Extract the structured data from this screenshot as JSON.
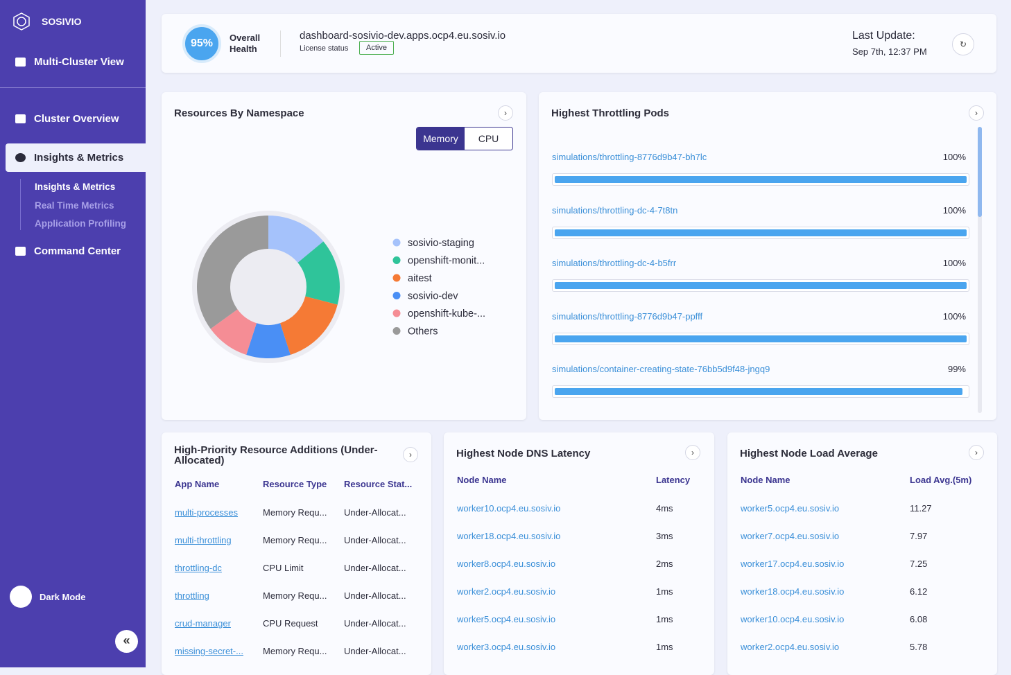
{
  "sidebar": {
    "brand": "SOSIVIO",
    "multi_cluster": "Multi-Cluster View",
    "cluster_overview": "Cluster Overview",
    "insights": "Insights & Metrics",
    "subitems": [
      "Insights & Metrics",
      "Real Time Metrics",
      "Application Profiling"
    ],
    "command_center": "Command Center",
    "dark_mode": "Dark Mode"
  },
  "header": {
    "health": {
      "value": 95,
      "label": "95%"
    },
    "health_title": "Overall Health",
    "cluster": "dashboard-sosivio-dev.apps.ocp4.eu.sosiv.io",
    "license_label": "License status",
    "license": "Active",
    "last_update_label": "Last Update:",
    "last_update": "Sep 7th, 12:37 PM"
  },
  "chart_data": {
    "type": "donut",
    "title": "Resources By Namespace",
    "toggle": [
      "Memory",
      "CPU"
    ],
    "categories": [
      "sosivio-staging",
      "openshift-monit...",
      "aitest",
      "sosivio-dev",
      "openshift-kube-...",
      "Others"
    ],
    "values": [
      14,
      15,
      16,
      10,
      10,
      35
    ],
    "colors": [
      "#a5c2fb",
      "#2fc49a",
      "#f57a35",
      "#4a8ff5",
      "#f58d95",
      "#9a9a9a"
    ]
  },
  "throttling": {
    "title": "Highest Throttling Pods",
    "rows": [
      {
        "name": "simulations/throttling-8776d9b47-bh7lc",
        "value": 100,
        "label": "100%"
      },
      {
        "name": "simulations/throttling-dc-4-7t8tn",
        "value": 100,
        "label": "100%"
      },
      {
        "name": "simulations/throttling-dc-4-b5frr",
        "value": 100,
        "label": "100%"
      },
      {
        "name": "simulations/throttling-8776d9b47-ppfff",
        "value": 100,
        "label": "100%"
      },
      {
        "name": "simulations/container-creating-state-76bb5d9f48-jngq9",
        "value": 99,
        "label": "99%"
      }
    ]
  },
  "additions": {
    "title": "High-Priority Resource Additions (Under-Allocated)",
    "columns": [
      "App Name",
      "Resource Type",
      "Resource Stat..."
    ],
    "rows": [
      [
        "multi-processes",
        "Memory Requ...",
        "Under-Allocat..."
      ],
      [
        "multi-throttling",
        "Memory Requ...",
        "Under-Allocat..."
      ],
      [
        "throttling-dc",
        "CPU Limit",
        "Under-Allocat..."
      ],
      [
        "throttling",
        "Memory Requ...",
        "Under-Allocat..."
      ],
      [
        "crud-manager",
        "CPU Request",
        "Under-Allocat..."
      ],
      [
        "missing-secret-...",
        "Memory Requ...",
        "Under-Allocat..."
      ]
    ]
  },
  "dns": {
    "title": "Highest Node DNS Latency",
    "columns": [
      "Node Name",
      "Latency"
    ],
    "rows": [
      [
        "worker10.ocp4.eu.sosiv.io",
        "4ms"
      ],
      [
        "worker18.ocp4.eu.sosiv.io",
        "3ms"
      ],
      [
        "worker8.ocp4.eu.sosiv.io",
        "2ms"
      ],
      [
        "worker2.ocp4.eu.sosiv.io",
        "1ms"
      ],
      [
        "worker5.ocp4.eu.sosiv.io",
        "1ms"
      ],
      [
        "worker3.ocp4.eu.sosiv.io",
        "1ms"
      ]
    ]
  },
  "load": {
    "title": "Highest Node Load Average",
    "columns": [
      "Node Name",
      "Load Avg.(5m)"
    ],
    "rows": [
      [
        "worker5.ocp4.eu.sosiv.io",
        11.27
      ],
      [
        "worker7.ocp4.eu.sosiv.io",
        7.97
      ],
      [
        "worker17.ocp4.eu.sosiv.io",
        7.25
      ],
      [
        "worker18.ocp4.eu.sosiv.io",
        6.12
      ],
      [
        "worker10.ocp4.eu.sosiv.io",
        6.08
      ],
      [
        "worker2.ocp4.eu.sosiv.io",
        5.78
      ]
    ]
  }
}
